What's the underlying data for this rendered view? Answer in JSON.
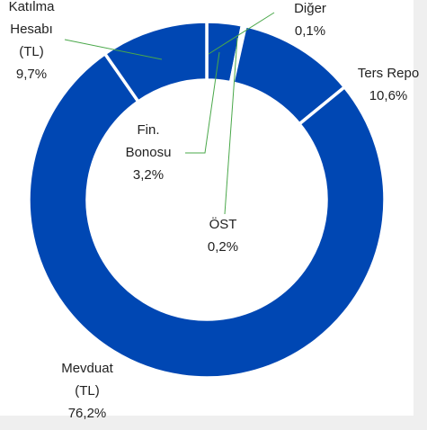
{
  "chart_data": {
    "type": "donut",
    "categories": [
      "Fin. Bonosu",
      "ÖST",
      "Diğer",
      "Ters Repo",
      "Mevduat (TL)",
      "Katılma Hesabı (TL)"
    ],
    "values": [
      3.2,
      0.2,
      0.1,
      10.6,
      76.2,
      9.7
    ],
    "value_labels": [
      "3,2%",
      "0,2%",
      "0,1%",
      "10,6%",
      "76,2%",
      "9,7%"
    ],
    "color": "#0047b3"
  }
}
